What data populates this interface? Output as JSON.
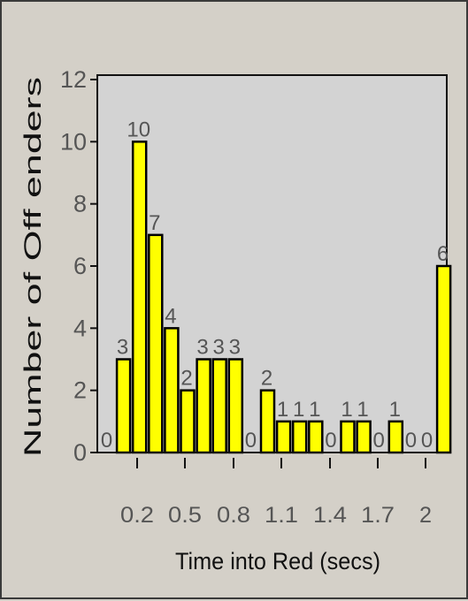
{
  "chart_data": {
    "type": "bar",
    "xlabel": "Time into Red (secs)",
    "ylabel": "Number of Off enders",
    "ylim": [
      0,
      12
    ],
    "yticks": [
      "0",
      "2",
      "4",
      "6",
      "8",
      "10",
      "12"
    ],
    "xtick_labels": [
      "0.2",
      "0.5",
      "0.8",
      "1.1",
      "1.4",
      "1.7",
      "2"
    ],
    "values": [
      0,
      3,
      10,
      7,
      4,
      2,
      3,
      3,
      3,
      0,
      2,
      1,
      1,
      1,
      0,
      1,
      1,
      0,
      1,
      0,
      0,
      6
    ],
    "grid": false,
    "colors": {
      "bar": "#ffff00",
      "bar_edge": "#000000",
      "plot_bg": "#d3d3d3",
      "page_bg": "#d4d0c8"
    }
  }
}
